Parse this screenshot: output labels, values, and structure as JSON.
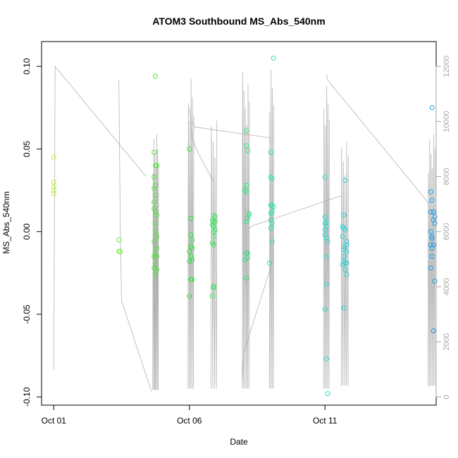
{
  "chart_data": {
    "type": "scatter",
    "title": "ATOM3 Southbound MS_Abs_540nm",
    "xlabel": "Date",
    "ylabel": "MS_Abs_540nm",
    "x_ticks": [
      {
        "label": "Oct 01",
        "day": 1
      },
      {
        "label": "Oct 06",
        "day": 6
      },
      {
        "label": "Oct 11",
        "day": 11
      }
    ],
    "xlim_days": [
      0.55,
      15.1
    ],
    "ylim": [
      -0.105,
      0.115
    ],
    "y_ticks": [
      -0.1,
      -0.05,
      0.0,
      0.05,
      0.1
    ],
    "y_tick_labels": [
      "-0.10",
      "-0.05",
      "0.00",
      "0.05",
      "0.10"
    ],
    "right_axis": {
      "ylim": [
        -300,
        12900
      ],
      "ticks": [
        0,
        2000,
        4000,
        6000,
        8000,
        10000,
        12000
      ],
      "tick_labels": [
        "0",
        "2000",
        "4000",
        "6000",
        "8000",
        "10000",
        "12000"
      ],
      "color": "#a6a6a6"
    },
    "point_color_scale": [
      "#b7ef3a",
      "#33e033",
      "#2ee6c8",
      "#1a9be6"
    ],
    "series": [
      {
        "points": [
          {
            "x": 1.0,
            "y": 0.045
          },
          {
            "x": 1.0,
            "y": 0.03
          },
          {
            "x": 1.0,
            "y": 0.027
          },
          {
            "x": 1.0,
            "y": 0.025
          },
          {
            "x": 1.0,
            "y": 0.023
          },
          {
            "x": 3.4,
            "y": -0.005
          },
          {
            "x": 3.4,
            "y": -0.012
          },
          {
            "x": 3.45,
            "y": -0.012
          },
          {
            "x": 4.75,
            "y": 0.094
          },
          {
            "x": 4.7,
            "y": 0.048
          },
          {
            "x": 4.75,
            "y": 0.04
          },
          {
            "x": 4.8,
            "y": 0.04
          },
          {
            "x": 4.7,
            "y": 0.033
          },
          {
            "x": 4.75,
            "y": 0.028
          },
          {
            "x": 4.7,
            "y": 0.026
          },
          {
            "x": 4.75,
            "y": 0.022
          },
          {
            "x": 4.7,
            "y": 0.018
          },
          {
            "x": 4.7,
            "y": 0.014
          },
          {
            "x": 4.75,
            "y": 0.012
          },
          {
            "x": 4.8,
            "y": 0.01
          },
          {
            "x": 4.75,
            "y": 0.005
          },
          {
            "x": 4.75,
            "y": 0.0
          },
          {
            "x": 4.8,
            "y": -0.003
          },
          {
            "x": 4.7,
            "y": -0.006
          },
          {
            "x": 4.8,
            "y": -0.01
          },
          {
            "x": 4.75,
            "y": -0.013
          },
          {
            "x": 4.7,
            "y": -0.015
          },
          {
            "x": 4.8,
            "y": -0.015
          },
          {
            "x": 4.75,
            "y": -0.02
          },
          {
            "x": 4.7,
            "y": -0.022
          },
          {
            "x": 4.8,
            "y": -0.023
          },
          {
            "x": 4.75,
            "y": -0.026
          },
          {
            "x": 6.0,
            "y": 0.05
          },
          {
            "x": 6.05,
            "y": 0.008
          },
          {
            "x": 6.05,
            "y": -0.002
          },
          {
            "x": 6.1,
            "y": -0.005
          },
          {
            "x": 6.05,
            "y": -0.009
          },
          {
            "x": 6.1,
            "y": -0.01
          },
          {
            "x": 6.0,
            "y": -0.012
          },
          {
            "x": 6.05,
            "y": -0.015
          },
          {
            "x": 6.1,
            "y": -0.017
          },
          {
            "x": 6.0,
            "y": -0.018
          },
          {
            "x": 6.1,
            "y": -0.029
          },
          {
            "x": 6.05,
            "y": -0.029
          },
          {
            "x": 6.0,
            "y": -0.039
          },
          {
            "x": 6.9,
            "y": 0.01
          },
          {
            "x": 6.95,
            "y": 0.009
          },
          {
            "x": 6.85,
            "y": 0.007
          },
          {
            "x": 6.9,
            "y": 0.006
          },
          {
            "x": 6.95,
            "y": 0.006
          },
          {
            "x": 6.85,
            "y": 0.004
          },
          {
            "x": 6.9,
            "y": 0.003
          },
          {
            "x": 6.95,
            "y": 0.001
          },
          {
            "x": 6.9,
            "y": 0.0
          },
          {
            "x": 6.9,
            "y": -0.003
          },
          {
            "x": 6.85,
            "y": -0.007
          },
          {
            "x": 6.9,
            "y": -0.008
          },
          {
            "x": 6.9,
            "y": -0.033
          },
          {
            "x": 6.9,
            "y": -0.034
          },
          {
            "x": 6.85,
            "y": -0.039
          }
        ]
      },
      {
        "points": [
          {
            "x": 8.1,
            "y": 0.061
          },
          {
            "x": 8.1,
            "y": 0.052
          },
          {
            "x": 8.15,
            "y": 0.049
          },
          {
            "x": 8.1,
            "y": 0.028
          },
          {
            "x": 8.05,
            "y": 0.025
          },
          {
            "x": 8.1,
            "y": 0.024
          },
          {
            "x": 8.2,
            "y": 0.011
          },
          {
            "x": 8.2,
            "y": 0.01
          },
          {
            "x": 8.15,
            "y": 0.008
          },
          {
            "x": 8.1,
            "y": 0.006
          },
          {
            "x": 8.15,
            "y": -0.013
          },
          {
            "x": 8.1,
            "y": -0.013
          },
          {
            "x": 8.15,
            "y": -0.016
          },
          {
            "x": 8.05,
            "y": -0.017
          },
          {
            "x": 8.1,
            "y": -0.028
          },
          {
            "x": 9.1,
            "y": 0.105
          },
          {
            "x": 9.0,
            "y": 0.048
          },
          {
            "x": 9.0,
            "y": 0.033
          },
          {
            "x": 9.05,
            "y": 0.032
          },
          {
            "x": 9.0,
            "y": 0.016
          },
          {
            "x": 9.05,
            "y": 0.016
          },
          {
            "x": 9.1,
            "y": 0.015
          },
          {
            "x": 9.05,
            "y": 0.012
          },
          {
            "x": 9.0,
            "y": 0.011
          },
          {
            "x": 9.0,
            "y": 0.007
          },
          {
            "x": 9.05,
            "y": 0.005
          },
          {
            "x": 9.0,
            "y": 0.002
          },
          {
            "x": 9.05,
            "y": -0.006
          },
          {
            "x": 8.95,
            "y": -0.019
          }
        ]
      },
      {
        "points": [
          {
            "x": 11.0,
            "y": 0.033
          },
          {
            "x": 11.0,
            "y": 0.009
          },
          {
            "x": 11.05,
            "y": 0.006
          },
          {
            "x": 11.0,
            "y": 0.005
          },
          {
            "x": 11.05,
            "y": 0.003
          },
          {
            "x": 11.0,
            "y": 0.001
          },
          {
            "x": 11.0,
            "y": -0.002
          },
          {
            "x": 11.05,
            "y": -0.004
          },
          {
            "x": 11.1,
            "y": -0.006
          },
          {
            "x": 11.05,
            "y": -0.015
          },
          {
            "x": 11.05,
            "y": -0.032
          },
          {
            "x": 11.0,
            "y": -0.047
          },
          {
            "x": 11.05,
            "y": -0.077
          },
          {
            "x": 11.1,
            "y": -0.098
          },
          {
            "x": 11.75,
            "y": 0.031
          },
          {
            "x": 11.7,
            "y": 0.01
          },
          {
            "x": 11.65,
            "y": 0.003
          },
          {
            "x": 11.7,
            "y": 0.002
          },
          {
            "x": 11.75,
            "y": 0.001
          },
          {
            "x": 11.65,
            "y": -0.003
          },
          {
            "x": 11.8,
            "y": -0.006
          },
          {
            "x": 11.8,
            "y": -0.008
          },
          {
            "x": 11.7,
            "y": -0.009
          },
          {
            "x": 11.7,
            "y": -0.011
          },
          {
            "x": 11.8,
            "y": -0.012
          },
          {
            "x": 11.7,
            "y": -0.015
          },
          {
            "x": 11.7,
            "y": -0.018
          },
          {
            "x": 11.8,
            "y": -0.019
          },
          {
            "x": 11.75,
            "y": -0.019
          },
          {
            "x": 11.65,
            "y": -0.02
          },
          {
            "x": 11.75,
            "y": -0.023
          },
          {
            "x": 11.8,
            "y": -0.026
          },
          {
            "x": 11.7,
            "y": -0.046
          }
        ]
      },
      {
        "points": [
          {
            "x": 14.95,
            "y": 0.075
          },
          {
            "x": 14.9,
            "y": 0.024
          },
          {
            "x": 14.95,
            "y": 0.019
          },
          {
            "x": 14.9,
            "y": 0.012
          },
          {
            "x": 15.0,
            "y": 0.012
          },
          {
            "x": 15.05,
            "y": 0.009
          },
          {
            "x": 15.0,
            "y": 0.007
          },
          {
            "x": 15.05,
            "y": 0.005
          },
          {
            "x": 14.9,
            "y": 0.0
          },
          {
            "x": 14.95,
            "y": -0.003
          },
          {
            "x": 14.95,
            "y": -0.004
          },
          {
            "x": 14.9,
            "y": -0.008
          },
          {
            "x": 15.0,
            "y": -0.008
          },
          {
            "x": 14.95,
            "y": -0.01
          },
          {
            "x": 14.95,
            "y": -0.015
          },
          {
            "x": 14.9,
            "y": -0.022
          },
          {
            "x": 15.05,
            "y": -0.03
          },
          {
            "x": 15.0,
            "y": -0.06
          }
        ]
      }
    ],
    "right_trace": {
      "segments": [
        {
          "x": [
            1.0,
            1.05,
            4.4
          ],
          "y": [
            1000,
            12000,
            8000
          ]
        },
        {
          "x": [
            3.4,
            3.45,
            3.5,
            4.6
          ],
          "y": [
            11500,
            6400,
            3500,
            200
          ]
        },
        {
          "x": [
            6.0,
            6.1,
            6.3,
            6.9
          ],
          "y": [
            10500,
            9400,
            8900,
            7800
          ]
        },
        {
          "x": [
            6.1,
            6.2,
            9.0
          ],
          "y": [
            10000,
            9800,
            9400
          ]
        },
        {
          "x": [
            7.95,
            8.0,
            9.0
          ],
          "y": [
            600,
            1600,
            4700
          ]
        },
        {
          "x": [
            8.2,
            8.3,
            11.6
          ],
          "y": [
            6100,
            6200,
            7300
          ]
        },
        {
          "x": [
            11.05,
            11.1,
            14.85
          ],
          "y": [
            11700,
            11500,
            7000
          ]
        }
      ],
      "clusters": [
        {
          "x": [
            4.65,
            4.85
          ],
          "n": 7,
          "low": 250,
          "high": 9900
        },
        {
          "x": [
            5.95,
            6.15
          ],
          "n": 5,
          "low": 300,
          "high": 12200
        },
        {
          "x": [
            6.8,
            7.0
          ],
          "n": 4,
          "low": 300,
          "high": 10600
        },
        {
          "x": [
            7.95,
            8.2
          ],
          "n": 6,
          "low": 300,
          "high": 12000
        },
        {
          "x": [
            8.95,
            9.1
          ],
          "n": 4,
          "low": 300,
          "high": 12100
        },
        {
          "x": [
            10.95,
            11.15
          ],
          "n": 5,
          "low": 300,
          "high": 11500
        },
        {
          "x": [
            11.6,
            11.85
          ],
          "n": 5,
          "low": 400,
          "high": 9400
        },
        {
          "x": [
            14.8,
            15.05
          ],
          "n": 6,
          "low": 400,
          "high": 9700
        }
      ]
    }
  }
}
